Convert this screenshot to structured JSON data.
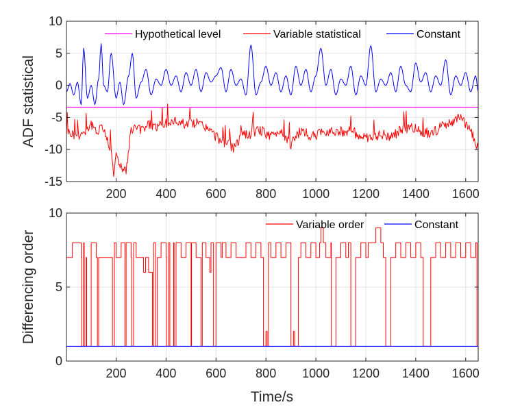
{
  "chart_data": [
    {
      "type": "line",
      "xlabel": "",
      "ylabel": "ADF statistical",
      "xlim": [
        1,
        1650
      ],
      "ylim": [
        -15,
        10
      ],
      "xticks": [
        200,
        400,
        600,
        800,
        1000,
        1200,
        1400,
        1600
      ],
      "yticks": [
        10,
        5,
        0,
        -5,
        -10,
        -15
      ],
      "grid": true,
      "legend": "top",
      "legend_entries": [
        "Hypothetical level",
        "Variable statistical",
        "Constant"
      ],
      "series": [
        {
          "name": "Hypothetical level",
          "color": "#ff00ff",
          "kind": "constant",
          "value": -3.4
        },
        {
          "name": "Variable statistical",
          "color": "#ff0000",
          "kind": "approx",
          "base": -6,
          "x": [
            1,
            20,
            40,
            60,
            80,
            100,
            120,
            140,
            160,
            180,
            190,
            200,
            210,
            240,
            260,
            280,
            300,
            330,
            360,
            400,
            440,
            480,
            520,
            560,
            600,
            640,
            670,
            700,
            740,
            780,
            820,
            860,
            900,
            940,
            980,
            1020,
            1060,
            1100,
            1140,
            1180,
            1220,
            1260,
            1300,
            1340,
            1380,
            1420,
            1460,
            1500,
            1540,
            1580,
            1620,
            1650
          ],
          "y": [
            -7,
            -7.5,
            -7.8,
            -7.5,
            -7,
            -6,
            -7.5,
            -6,
            -8,
            -10,
            -13.5,
            -11,
            -12,
            -13.5,
            -7,
            -6.5,
            -7,
            -6,
            -6.5,
            -6,
            -5.5,
            -6,
            -5.8,
            -6.5,
            -8,
            -9,
            -9.8,
            -8,
            -7.5,
            -7,
            -8,
            -7,
            -9.2,
            -7,
            -8,
            -7.5,
            -7,
            -7.2,
            -7,
            -8,
            -8.5,
            -7.5,
            -8,
            -7,
            -6.5,
            -7.2,
            -7.5,
            -6.5,
            -6,
            -5,
            -7,
            -9.8
          ]
        },
        {
          "name": "Constant",
          "color": "#0000ff",
          "kind": "approx",
          "x": [
            1,
            15,
            30,
            45,
            60,
            70,
            85,
            100,
            115,
            130,
            140,
            150,
            165,
            180,
            200,
            215,
            230,
            250,
            265,
            280,
            300,
            320,
            340,
            360,
            380,
            400,
            420,
            440,
            460,
            480,
            500,
            520,
            540,
            560,
            580,
            600,
            620,
            640,
            660,
            680,
            700,
            720,
            740,
            760,
            780,
            800,
            820,
            840,
            860,
            880,
            900,
            920,
            940,
            960,
            980,
            1000,
            1020,
            1040,
            1060,
            1080,
            1100,
            1120,
            1140,
            1160,
            1180,
            1200,
            1220,
            1240,
            1260,
            1280,
            1300,
            1320,
            1340,
            1360,
            1380,
            1400,
            1420,
            1440,
            1460,
            1480,
            1500,
            1520,
            1540,
            1560,
            1580,
            1600,
            1620,
            1640,
            1650
          ],
          "y": [
            -1,
            0.3,
            -1.5,
            0.5,
            -3,
            5.8,
            -2,
            0,
            -3,
            1,
            6.5,
            0,
            -1,
            5,
            -2,
            0.5,
            -3,
            1.5,
            5,
            -2,
            0.5,
            2.5,
            -1.5,
            1,
            0,
            2.5,
            0,
            1.5,
            -1,
            2,
            0,
            2.5,
            -1,
            2,
            0.5,
            1.5,
            2.8,
            -1,
            2.5,
            0,
            1,
            -1.5,
            6.3,
            -1.5,
            0.5,
            3,
            0,
            2,
            -1,
            1.5,
            -1.5,
            3,
            0,
            2.5,
            -1,
            1.5,
            5.8,
            0,
            2.5,
            -1.5,
            1,
            0,
            3,
            -1.5,
            1.5,
            0,
            6.2,
            -1,
            1,
            0,
            2,
            -1,
            3,
            0,
            -1,
            3.5,
            0.5,
            2,
            -1,
            1.5,
            0,
            4,
            -1.5,
            1.5,
            0,
            2,
            -1,
            1.5,
            -1
          ]
        }
      ]
    },
    {
      "type": "line",
      "xlabel": "Time/s",
      "ylabel": "Differencing order",
      "xlim": [
        1,
        1650
      ],
      "ylim": [
        0,
        10
      ],
      "xticks": [
        200,
        400,
        600,
        800,
        1000,
        1200,
        1400,
        1600
      ],
      "yticks": [
        0,
        5,
        10
      ],
      "grid": true,
      "legend": "top-right",
      "legend_entries": [
        "Variable order",
        "Constant"
      ],
      "series": [
        {
          "name": "Variable order",
          "color": "#ff0000",
          "kind": "step",
          "x": [
            1,
            25,
            60,
            62,
            70,
            72,
            80,
            82,
            100,
            120,
            125,
            130,
            180,
            185,
            190,
            193,
            200,
            220,
            235,
            240,
            260,
            262,
            270,
            280,
            300,
            310,
            318,
            330,
            340,
            345,
            350,
            358,
            365,
            380,
            400,
            402,
            410,
            415,
            430,
            432,
            440,
            460,
            480,
            500,
            502,
            520,
            540,
            545,
            560,
            575,
            580,
            590,
            600,
            620,
            625,
            640,
            660,
            680,
            700,
            720,
            740,
            760,
            780,
            790,
            800,
            805,
            810,
            820,
            840,
            860,
            880,
            900,
            910,
            915,
            930,
            940,
            960,
            980,
            1000,
            1015,
            1020,
            1030,
            1040,
            1060,
            1062,
            1080,
            1100,
            1120,
            1130,
            1140,
            1160,
            1180,
            1200,
            1210,
            1230,
            1240,
            1250,
            1260,
            1270,
            1280,
            1300,
            1320,
            1340,
            1360,
            1380,
            1400,
            1420,
            1430,
            1440,
            1460,
            1480,
            1500,
            1520,
            1540,
            1560,
            1580,
            1600,
            1620,
            1640,
            1645,
            1650
          ],
          "y": [
            7,
            8,
            7,
            1,
            8,
            1,
            7,
            1,
            8,
            7,
            1,
            7,
            7,
            1,
            1,
            8,
            7,
            8,
            1,
            8,
            7,
            1,
            8,
            7,
            7,
            6,
            7,
            6,
            6,
            1,
            8,
            1,
            7,
            8,
            7,
            1,
            8,
            1,
            8,
            1,
            8,
            7,
            8,
            1,
            8,
            7,
            1,
            8,
            7,
            6,
            8,
            1,
            8,
            7,
            8,
            7,
            8,
            7,
            7,
            8,
            7,
            8,
            7,
            1,
            2,
            1,
            8,
            7,
            8,
            7,
            8,
            1,
            2,
            1,
            7,
            8,
            7,
            8,
            7,
            8,
            9,
            8,
            7,
            8,
            1,
            7,
            8,
            7,
            8,
            1,
            7,
            8,
            7,
            8,
            8,
            9,
            9,
            8,
            7,
            1,
            7,
            8,
            7,
            8,
            7,
            8,
            7,
            1,
            1,
            7,
            8,
            7,
            8,
            7,
            8,
            7,
            8,
            7,
            8,
            1,
            7
          ]
        },
        {
          "name": "Constant",
          "color": "#0000ff",
          "kind": "constant",
          "value": 1
        }
      ]
    }
  ]
}
